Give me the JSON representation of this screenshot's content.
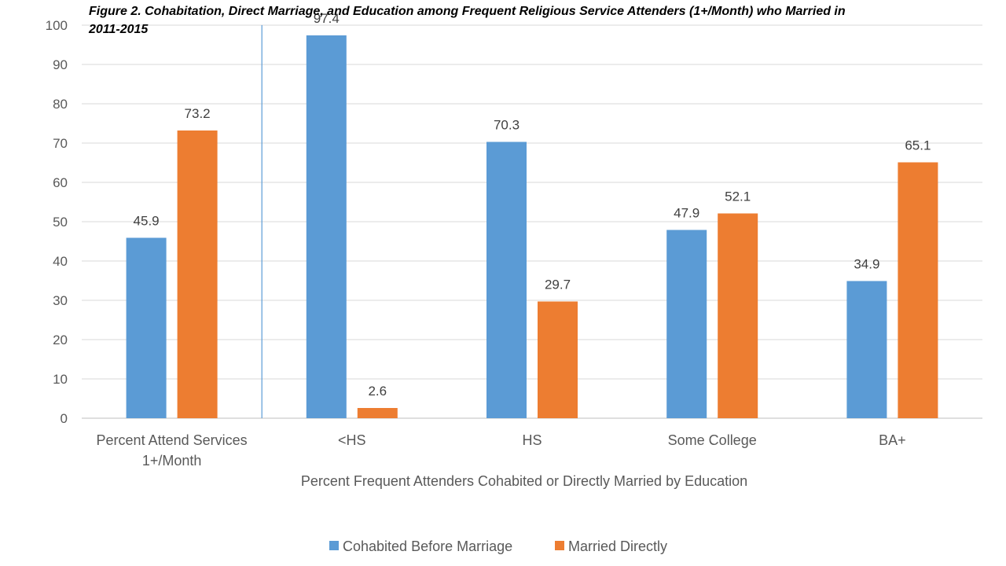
{
  "chart_data": {
    "type": "bar",
    "title_lines": [
      "Figure 2. Cohabitation, Direct Marriage, and Education among Frequent Religious Service Attenders (1+/Month) who Married in",
      "2011-2015"
    ],
    "categories": [
      [
        "Percent Attend Services",
        "1+/Month"
      ],
      [
        "<HS"
      ],
      [
        "HS"
      ],
      [
        "Some College"
      ],
      [
        "BA+"
      ]
    ],
    "series": [
      {
        "name": "Cohabited Before Marriage",
        "color": "#5B9BD5",
        "values": [
          45.9,
          97.4,
          70.3,
          47.9,
          34.9
        ]
      },
      {
        "name": "Married Directly",
        "color": "#ED7D31",
        "values": [
          73.2,
          2.6,
          29.7,
          52.1,
          65.1
        ]
      }
    ],
    "xlabel": "Percent Frequent Attenders Cohabited or Directly Married by Education",
    "ylabel": "",
    "ylim": [
      0,
      100
    ],
    "yticks": [
      0,
      10,
      20,
      30,
      40,
      50,
      60,
      70,
      80,
      90,
      100
    ],
    "grid": true,
    "legend_position": "bottom",
    "separator_after_category": 0,
    "separator_color": "#5B9BD5"
  }
}
